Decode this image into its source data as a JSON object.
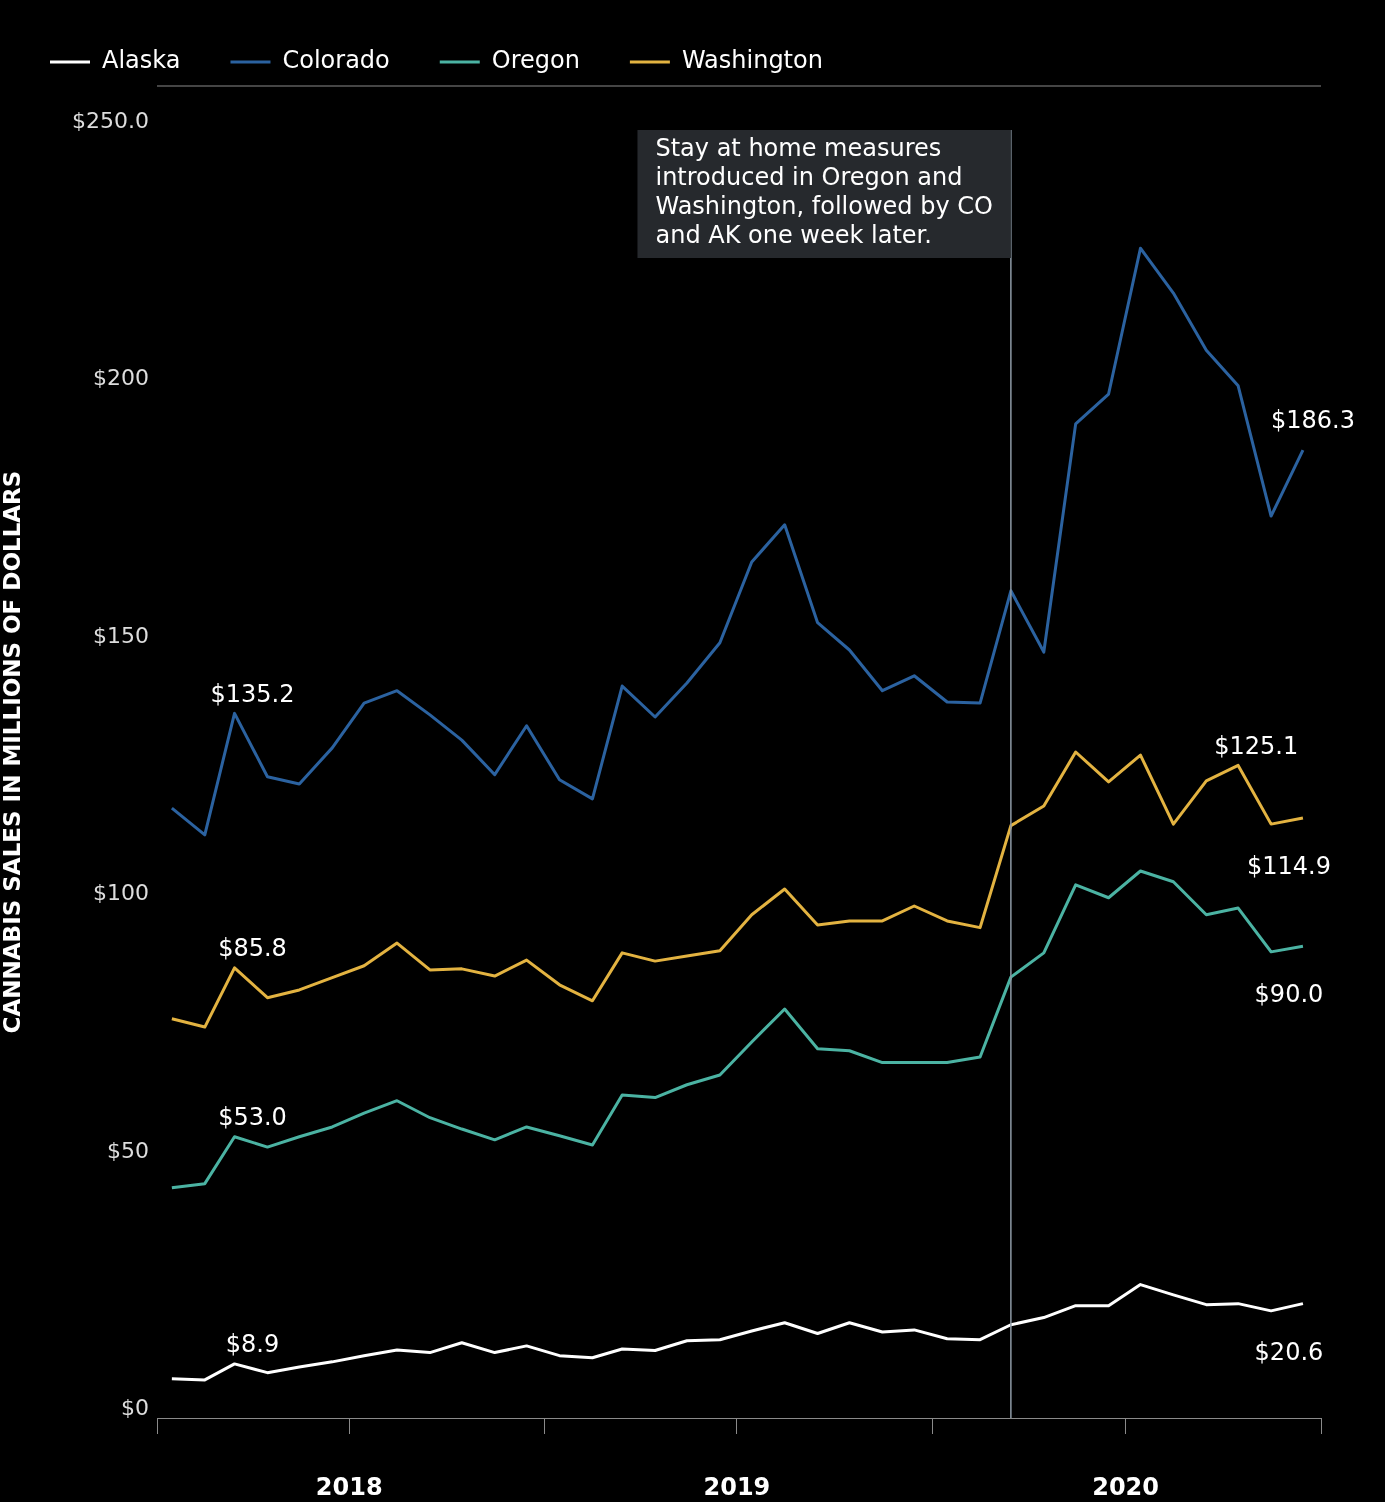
{
  "chart_data": {
    "type": "line",
    "ylabel": "CANNABIS SALES IN MILLIONS OF DOLLARS",
    "x": [
      "2018-01-15",
      "2018-02-15",
      "2018-03-15",
      "2018-04-15",
      "2018-05-15",
      "2018-06-15",
      "2018-07-15",
      "2018-08-15",
      "2018-09-15",
      "2018-10-15",
      "2018-11-15",
      "2018-12-15",
      "2019-01-15",
      "2019-02-15",
      "2019-03-15",
      "2019-04-15",
      "2019-05-15",
      "2019-06-15",
      "2019-07-15",
      "2019-08-15",
      "2019-09-15",
      "2019-10-15",
      "2019-11-15",
      "2019-12-15",
      "2020-01-15",
      "2020-02-15",
      "2020-03-15",
      "2020-04-15",
      "2020-05-15",
      "2020-06-15",
      "2020-07-15",
      "2020-08-15",
      "2020-09-15",
      "2020-10-15",
      "2020-11-15",
      "2020-12-15"
    ],
    "series": [
      {
        "name": "Alaska",
        "color": "#ffffff",
        "values": [
          6.0,
          5.8,
          8.9,
          7.2,
          8.3,
          9.3,
          10.5,
          11.6,
          11.1,
          13.0,
          11.1,
          12.4,
          10.5,
          10.1,
          11.8,
          11.5,
          13.4,
          13.6,
          15.3,
          16.9,
          14.8,
          16.9,
          15.1,
          15.5,
          13.8,
          13.6,
          16.5,
          17.9,
          20.2,
          20.2,
          24.3,
          22.3,
          20.4,
          20.6,
          19.2,
          20.6
        ],
        "value_labels": [
          null,
          null,
          "$8.9",
          null,
          null,
          null,
          null,
          null,
          null,
          null,
          null,
          null,
          null,
          null,
          null,
          null,
          null,
          null,
          null,
          null,
          null,
          null,
          null,
          null,
          null,
          null,
          null,
          null,
          null,
          null,
          null,
          null,
          null,
          null,
          null,
          "$20.6"
        ]
      },
      {
        "name": "Colorado",
        "color": "#2b62a0",
        "values": [
          116.8,
          111.6,
          135.2,
          122.9,
          121.5,
          128.5,
          137.2,
          139.6,
          134.9,
          130.0,
          123.3,
          132.8,
          122.3,
          118.6,
          140.5,
          134.5,
          141.1,
          148.9,
          164.6,
          171.8,
          152.8,
          147.5,
          139.6,
          142.5,
          137.4,
          137.2,
          159.0,
          147.1,
          191.4,
          197.2,
          225.5,
          216.8,
          205.7,
          198.8,
          173.5,
          186.3
        ],
        "value_labels": [
          null,
          null,
          "$135.2",
          null,
          null,
          null,
          null,
          null,
          null,
          null,
          null,
          null,
          null,
          null,
          null,
          null,
          null,
          null,
          null,
          null,
          null,
          null,
          null,
          null,
          null,
          null,
          null,
          null,
          null,
          null,
          null,
          null,
          null,
          null,
          null,
          "$186.3"
        ]
      },
      {
        "name": "Oregon",
        "color": "#4bb3a3",
        "values": [
          43.1,
          43.9,
          53.0,
          51.0,
          53.0,
          54.9,
          57.6,
          60.0,
          56.7,
          54.5,
          52.4,
          54.9,
          53.2,
          51.4,
          61.1,
          60.6,
          63.1,
          65.0,
          71.4,
          77.8,
          70.1,
          69.7,
          67.4,
          67.4,
          67.4,
          68.5,
          84.0,
          88.7,
          101.9,
          99.4,
          104.6,
          102.5,
          96.1,
          97.4,
          88.9,
          90.0
        ],
        "value_labels": [
          null,
          null,
          "$53.0",
          null,
          null,
          null,
          null,
          null,
          null,
          null,
          null,
          null,
          null,
          null,
          null,
          null,
          null,
          null,
          null,
          null,
          null,
          null,
          null,
          null,
          null,
          null,
          null,
          null,
          null,
          null,
          null,
          null,
          null,
          null,
          null,
          "$90.0"
        ]
      },
      {
        "name": "Washington",
        "color": "#e3b341",
        "values": [
          75.9,
          74.3,
          85.8,
          80.0,
          81.5,
          83.9,
          86.2,
          90.6,
          85.4,
          85.6,
          84.2,
          87.3,
          82.5,
          79.4,
          88.7,
          87.1,
          88.1,
          89.1,
          96.1,
          101.1,
          94.1,
          94.9,
          94.9,
          97.8,
          94.9,
          93.6,
          113.4,
          117.2,
          127.7,
          121.9,
          127.1,
          113.7,
          122.1,
          125.1,
          113.7,
          114.9
        ],
        "value_labels": [
          null,
          null,
          "$85.8",
          null,
          null,
          null,
          null,
          null,
          null,
          null,
          null,
          null,
          null,
          null,
          null,
          null,
          null,
          null,
          null,
          null,
          null,
          null,
          null,
          null,
          null,
          null,
          null,
          null,
          null,
          null,
          null,
          null,
          null,
          "$125.1",
          null,
          "$114.9"
        ]
      }
    ],
    "xlim": [
      "2018-01-01",
      "2021-01-01"
    ],
    "xticks": [
      {
        "value": "2018-01-01",
        "label": null
      },
      {
        "value": "2018-07-01",
        "label": "2018"
      },
      {
        "value": "2019-01-01",
        "label": null
      },
      {
        "value": "2019-07-01",
        "label": "2019"
      },
      {
        "value": "2020-01-01",
        "label": null
      },
      {
        "value": "2020-07-01",
        "label": "2020"
      },
      {
        "value": "2021-01-01",
        "label": null
      }
    ],
    "ylim": [
      -1.6,
      257
    ],
    "yticks": [
      {
        "value": 0,
        "label": "$0"
      },
      {
        "value": 50,
        "label": "$50"
      },
      {
        "value": 100,
        "label": "$100"
      },
      {
        "value": 150,
        "label": "$150"
      },
      {
        "value": 200,
        "label": "$200"
      },
      {
        "value": 250,
        "label": "$250.0"
      }
    ],
    "ref_lines": [
      {
        "axis": "x",
        "value": "2020-03-15",
        "label": "Stay at home measures introduced in Oregon and Washington, followed by CO and AK one week later.",
        "color": "#8e9aa6"
      }
    ],
    "grid": false,
    "legend": "top left",
    "marker": "none",
    "line_style": "solid"
  }
}
